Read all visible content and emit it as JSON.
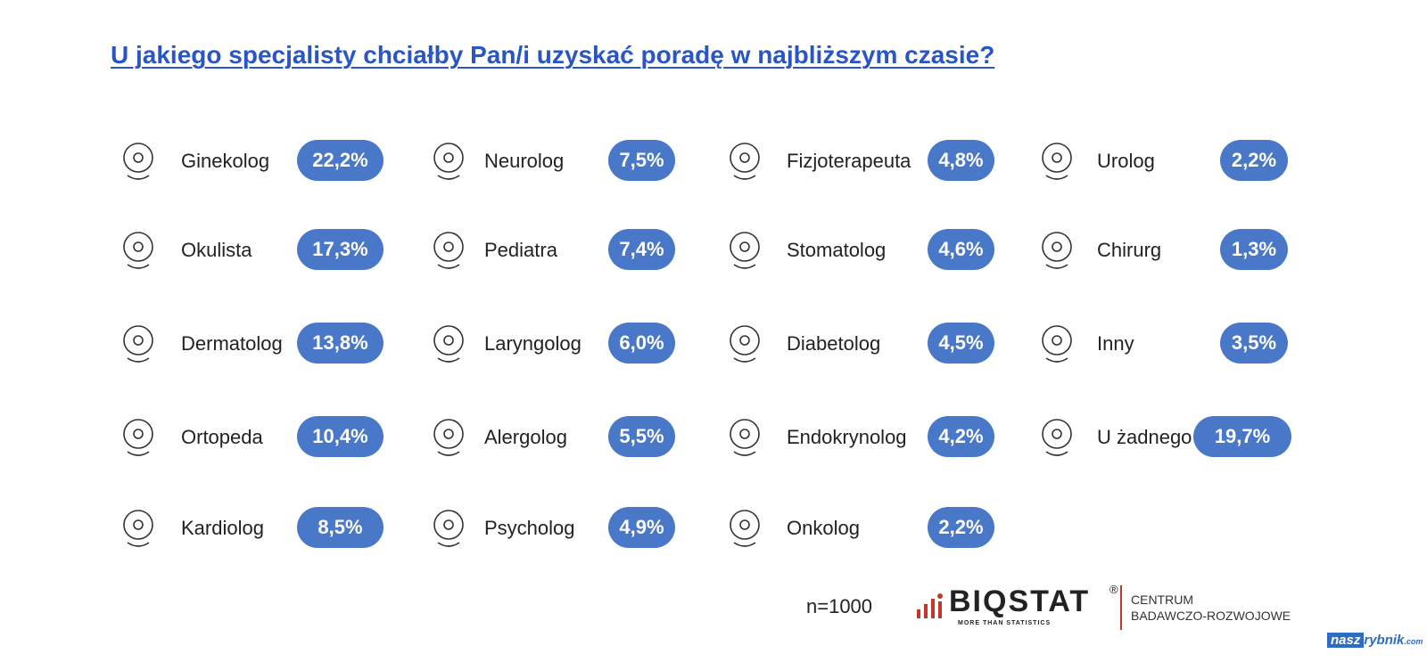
{
  "title": "U jakiego specjalisty chciałby Pan/i uzyskać poradę w najbliższym czasie?",
  "colors": {
    "pill": "#4a78c8",
    "title": "#2a55c4",
    "accent": "#c0392b"
  },
  "chart_data": {
    "type": "table",
    "title": "U jakiego specjalisty chciałby Pan/i uzyskać poradę w najbliższym czasie?",
    "columns": [
      [
        {
          "label": "Ginekolog",
          "value": "22,2%",
          "icon": "uterus-icon"
        },
        {
          "label": "Okulista",
          "value": "17,3%",
          "icon": "eye-test-glasses-icon"
        },
        {
          "label": "Dermatolog",
          "value": "13,8%",
          "icon": "hand-skin-icon"
        },
        {
          "label": "Ortopeda",
          "value": "10,4%",
          "icon": "knee-joint-icon"
        },
        {
          "label": "Kardiolog",
          "value": "8,5%",
          "icon": "heart-pulse-icon"
        }
      ],
      [
        {
          "label": "Neurolog",
          "value": "7,5%",
          "icon": "brain-icon"
        },
        {
          "label": "Pediatra",
          "value": "7,4%",
          "icon": "teddy-bear-stethoscope-icon"
        },
        {
          "label": "Laryngolog",
          "value": "6,0%",
          "icon": "throat-profile-icon"
        },
        {
          "label": "Alergolog",
          "value": "5,5%",
          "icon": "allergen-icon"
        },
        {
          "label": "Psycholog",
          "value": "4,9%",
          "icon": "head-mind-icon"
        }
      ],
      [
        {
          "label": "Fizjoterapeuta",
          "value": "4,8%",
          "icon": "massage-table-icon"
        },
        {
          "label": "Stomatolog",
          "value": "4,6%",
          "icon": "tooth-mirror-icon"
        },
        {
          "label": "Diabetolog",
          "value": "4,5%",
          "icon": "glucose-hand-icon"
        },
        {
          "label": "Endokrynolog",
          "value": "4,2%",
          "icon": "thyroid-profile-icon"
        },
        {
          "label": "Onkolog",
          "value": "2,2%",
          "icon": "radiotherapy-machine-icon"
        }
      ],
      [
        {
          "label": "Urolog",
          "value": "2,2%",
          "icon": "kidney-bladder-icon"
        },
        {
          "label": "Chirurg",
          "value": "1,3%",
          "icon": "surgeon-icon"
        },
        {
          "label": "Inny",
          "value": "3,5%",
          "icon": "medical-cross-hand-icon"
        },
        {
          "label": "U żadnego",
          "value": "19,7%",
          "icon": "bandage-icon"
        }
      ]
    ]
  },
  "footer": {
    "sample": "n=1000",
    "brand": "BIQSTAT",
    "brand_mark": "®",
    "brand_tagline": "MORE THAN STATISTICS",
    "centrum_line1": "CENTRUM",
    "centrum_line2": "BADAWCZO-ROZWOJOWE",
    "watermark_a": "nasz",
    "watermark_b": "rybnik",
    "watermark_c": ".com"
  }
}
